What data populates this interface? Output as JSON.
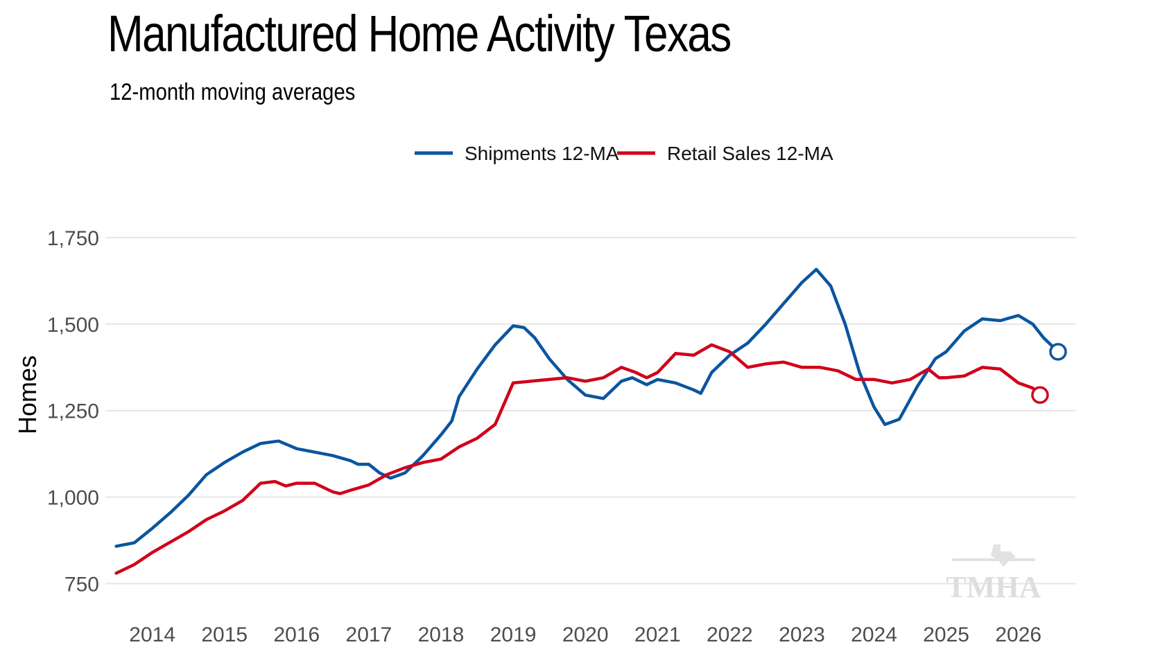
{
  "title": "Manufactured Home Activity Texas",
  "subtitle": "12-month moving averages",
  "watermark": "TMHA",
  "colors": {
    "shipments": "#0a55a0",
    "retail": "#d1001a",
    "grid": "#e6e6e6"
  },
  "chart_data": {
    "type": "line",
    "title": "Manufactured Home Activity Texas",
    "subtitle": "12-month moving averages",
    "xlabel": "",
    "ylabel": "Homes",
    "xlim": [
      2013.35,
      2026.8
    ],
    "ylim": [
      735,
      1800
    ],
    "y_ticks": [
      750,
      1000,
      1250,
      1500,
      1750
    ],
    "y_tick_labels": [
      "750",
      "1,000",
      "1,250",
      "1,500",
      "1,750"
    ],
    "x_ticks": [
      2014,
      2015,
      2016,
      2017,
      2018,
      2019,
      2020,
      2021,
      2022,
      2023,
      2024,
      2025,
      2026
    ],
    "x_tick_labels": [
      "2014",
      "2015",
      "2016",
      "2017",
      "2018",
      "2019",
      "2020",
      "2021",
      "2022",
      "2023",
      "2024",
      "2025",
      "2026"
    ],
    "grid": "horizontal",
    "legend_position": "top-center",
    "series": [
      {
        "name": "Shipments 12-MA",
        "color": "#0a55a0",
        "end_marker": "open-circle",
        "points": [
          [
            2013.5,
            858
          ],
          [
            2013.75,
            868
          ],
          [
            2014.0,
            910
          ],
          [
            2014.25,
            955
          ],
          [
            2014.5,
            1005
          ],
          [
            2014.75,
            1065
          ],
          [
            2015.0,
            1100
          ],
          [
            2015.25,
            1130
          ],
          [
            2015.5,
            1155
          ],
          [
            2015.75,
            1162
          ],
          [
            2016.0,
            1140
          ],
          [
            2016.25,
            1130
          ],
          [
            2016.5,
            1120
          ],
          [
            2016.75,
            1105
          ],
          [
            2016.85,
            1095
          ],
          [
            2017.0,
            1095
          ],
          [
            2017.15,
            1070
          ],
          [
            2017.3,
            1055
          ],
          [
            2017.5,
            1070
          ],
          [
            2017.75,
            1120
          ],
          [
            2018.0,
            1180
          ],
          [
            2018.15,
            1220
          ],
          [
            2018.25,
            1290
          ],
          [
            2018.5,
            1370
          ],
          [
            2018.75,
            1440
          ],
          [
            2019.0,
            1495
          ],
          [
            2019.15,
            1490
          ],
          [
            2019.3,
            1460
          ],
          [
            2019.5,
            1400
          ],
          [
            2019.75,
            1340
          ],
          [
            2020.0,
            1295
          ],
          [
            2020.25,
            1285
          ],
          [
            2020.5,
            1335
          ],
          [
            2020.65,
            1345
          ],
          [
            2020.85,
            1325
          ],
          [
            2021.0,
            1340
          ],
          [
            2021.25,
            1330
          ],
          [
            2021.5,
            1310
          ],
          [
            2021.6,
            1300
          ],
          [
            2021.75,
            1360
          ],
          [
            2022.0,
            1410
          ],
          [
            2022.25,
            1445
          ],
          [
            2022.5,
            1500
          ],
          [
            2022.75,
            1560
          ],
          [
            2023.0,
            1620
          ],
          [
            2023.2,
            1658
          ],
          [
            2023.4,
            1610
          ],
          [
            2023.6,
            1500
          ],
          [
            2023.8,
            1360
          ],
          [
            2024.0,
            1260
          ],
          [
            2024.15,
            1210
          ],
          [
            2024.35,
            1225
          ],
          [
            2024.6,
            1320
          ],
          [
            2024.85,
            1400
          ],
          [
            2025.0,
            1420
          ],
          [
            2025.25,
            1480
          ],
          [
            2025.5,
            1515
          ],
          [
            2025.75,
            1510
          ],
          [
            2026.0,
            1525
          ],
          [
            2026.2,
            1500
          ],
          [
            2026.35,
            1460
          ],
          [
            2026.55,
            1420
          ]
        ]
      },
      {
        "name": "Retail Sales 12-MA",
        "color": "#d1001a",
        "end_marker": "open-circle",
        "points": [
          [
            2013.5,
            780
          ],
          [
            2013.75,
            805
          ],
          [
            2014.0,
            840
          ],
          [
            2014.25,
            870
          ],
          [
            2014.5,
            900
          ],
          [
            2014.75,
            935
          ],
          [
            2015.0,
            960
          ],
          [
            2015.25,
            990
          ],
          [
            2015.5,
            1040
          ],
          [
            2015.7,
            1045
          ],
          [
            2015.85,
            1032
          ],
          [
            2016.0,
            1040
          ],
          [
            2016.25,
            1040
          ],
          [
            2016.5,
            1015
          ],
          [
            2016.6,
            1010
          ],
          [
            2016.75,
            1020
          ],
          [
            2017.0,
            1035
          ],
          [
            2017.25,
            1065
          ],
          [
            2017.5,
            1085
          ],
          [
            2017.75,
            1100
          ],
          [
            2018.0,
            1110
          ],
          [
            2018.25,
            1145
          ],
          [
            2018.5,
            1170
          ],
          [
            2018.75,
            1210
          ],
          [
            2019.0,
            1330
          ],
          [
            2019.25,
            1335
          ],
          [
            2019.5,
            1340
          ],
          [
            2019.75,
            1345
          ],
          [
            2020.0,
            1335
          ],
          [
            2020.25,
            1345
          ],
          [
            2020.5,
            1375
          ],
          [
            2020.7,
            1360
          ],
          [
            2020.85,
            1345
          ],
          [
            2021.0,
            1360
          ],
          [
            2021.25,
            1415
          ],
          [
            2021.5,
            1410
          ],
          [
            2021.75,
            1440
          ],
          [
            2022.0,
            1420
          ],
          [
            2022.25,
            1375
          ],
          [
            2022.5,
            1385
          ],
          [
            2022.75,
            1390
          ],
          [
            2023.0,
            1375
          ],
          [
            2023.25,
            1375
          ],
          [
            2023.5,
            1365
          ],
          [
            2023.75,
            1340
          ],
          [
            2024.0,
            1340
          ],
          [
            2024.25,
            1330
          ],
          [
            2024.5,
            1340
          ],
          [
            2024.75,
            1370
          ],
          [
            2024.9,
            1345
          ],
          [
            2025.0,
            1345
          ],
          [
            2025.25,
            1350
          ],
          [
            2025.5,
            1375
          ],
          [
            2025.75,
            1370
          ],
          [
            2026.0,
            1330
          ],
          [
            2026.2,
            1315
          ],
          [
            2026.3,
            1295
          ]
        ]
      }
    ]
  }
}
